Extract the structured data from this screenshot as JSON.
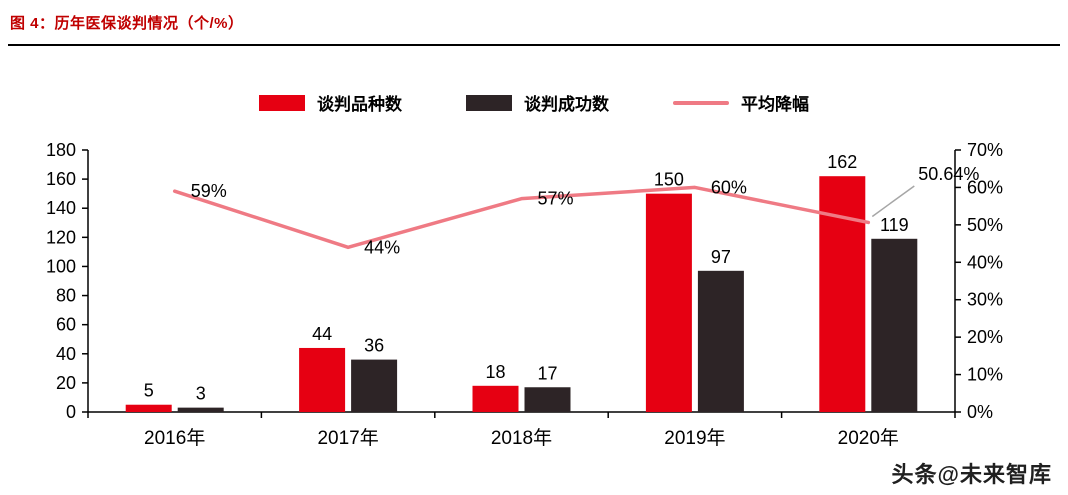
{
  "title": "图 4：历年医保谈判情况（个/%）",
  "watermark": "头条@未来智库",
  "colors": {
    "title": "#c00000",
    "bar_series1": "#e60012",
    "bar_series2": "#2d2426",
    "line_series": "#ef7a84",
    "axis": "#000000",
    "callout": "#a6a6a6"
  },
  "chart_data": {
    "type": "bar",
    "subtype": "grouped-bar-with-line",
    "categories": [
      "2016年",
      "2017年",
      "2018年",
      "2019年",
      "2020年"
    ],
    "series": [
      {
        "name": "谈判品种数",
        "type": "bar",
        "axis": "left",
        "values": [
          5,
          44,
          18,
          150,
          162
        ]
      },
      {
        "name": "谈判成功数",
        "type": "bar",
        "axis": "left",
        "values": [
          3,
          36,
          17,
          97,
          119
        ]
      },
      {
        "name": "平均降幅",
        "type": "line",
        "axis": "right",
        "values": [
          59,
          44,
          57,
          60,
          50.64
        ],
        "labels": [
          "59%",
          "44%",
          "57%",
          "60%",
          "50.64%"
        ]
      }
    ],
    "left_axis": {
      "min": 0,
      "max": 180,
      "step": 20,
      "suffix": ""
    },
    "right_axis": {
      "min": 0,
      "max": 70,
      "step": 10,
      "suffix": "%"
    },
    "grid": false,
    "legend_position": "top"
  }
}
